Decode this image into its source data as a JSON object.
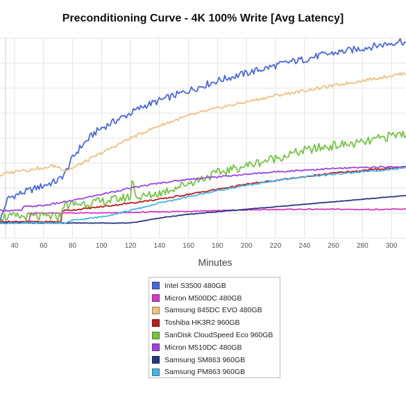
{
  "chart_data": {
    "type": "line",
    "title": "Preconditioning Curve - 4K 100% Write [Avg Latency]",
    "xlabel": "Minutes",
    "ylabel": "",
    "xlim": [
      30,
      310
    ],
    "ylim": [
      0,
      8
    ],
    "x_ticks": [
      40,
      60,
      80,
      100,
      120,
      140,
      160,
      180,
      200,
      220,
      240,
      260,
      280,
      300
    ],
    "grid": true,
    "legend_position": "bottom-center",
    "series": [
      {
        "name": "Intel S3500 480GB",
        "color": "#4a66e0",
        "x": [
          30,
          32,
          34,
          36,
          40,
          45,
          50,
          55,
          60,
          65,
          70,
          75,
          80,
          85,
          90,
          95,
          100,
          110,
          120,
          130,
          140,
          150,
          160,
          170,
          180,
          190,
          200,
          210,
          220,
          230,
          240,
          250,
          260,
          270,
          280,
          290,
          300,
          306,
          310
        ],
        "y": [
          0.7,
          1.0,
          1.4,
          1.6,
          1.7,
          1.8,
          1.9,
          2.0,
          2.1,
          2.2,
          2.3,
          2.6,
          3.2,
          3.6,
          3.9,
          4.2,
          4.4,
          4.7,
          5.0,
          5.3,
          5.5,
          5.7,
          5.9,
          6.1,
          6.3,
          6.45,
          6.6,
          6.75,
          6.9,
          7.05,
          7.15,
          7.3,
          7.4,
          7.5,
          7.6,
          7.7,
          7.8,
          7.9,
          7.8
        ],
        "jitter": 0.14
      },
      {
        "name": "Micron M500DC 480GB",
        "color": "#d33ac4",
        "x": [
          30,
          50,
          51,
          60,
          80,
          100,
          120,
          140,
          160,
          180,
          200,
          220,
          240,
          260,
          280,
          300,
          310
        ],
        "y": [
          0.65,
          0.65,
          1.0,
          1.0,
          1.0,
          1.0,
          1.02,
          1.05,
          1.07,
          1.1,
          1.12,
          1.14,
          1.15,
          1.15,
          1.14,
          1.15,
          1.15
        ],
        "jitter": 0.02
      },
      {
        "name": "Samsung 845DC EVO 480GB",
        "color": "#f0c080",
        "x": [
          30,
          35,
          40,
          45,
          50,
          55,
          60,
          65,
          70,
          75,
          80,
          90,
          100,
          110,
          120,
          130,
          140,
          160,
          180,
          200,
          220,
          240,
          260,
          280,
          300,
          310
        ],
        "y": [
          2.5,
          2.6,
          2.65,
          2.75,
          2.7,
          2.8,
          2.75,
          2.9,
          2.85,
          2.7,
          2.8,
          3.1,
          3.4,
          3.7,
          4.0,
          4.25,
          4.5,
          4.9,
          5.2,
          5.45,
          5.7,
          5.9,
          6.1,
          6.3,
          6.5,
          6.6
        ],
        "jitter": 0.06
      },
      {
        "name": "Toshiba HK3R2 960GB",
        "color": "#b81c1c",
        "x": [
          30,
          72,
          73,
          80,
          100,
          120,
          140,
          160,
          180,
          200,
          220,
          240,
          260,
          280,
          300,
          310
        ],
        "y": [
          0.65,
          0.65,
          1.1,
          1.12,
          1.25,
          1.4,
          1.55,
          1.75,
          1.95,
          2.15,
          2.3,
          2.45,
          2.6,
          2.7,
          2.8,
          2.85
        ],
        "jitter": 0.03
      },
      {
        "name": "SanDisk CloudSpeed Eco 960GB",
        "color": "#74c442",
        "x": [
          30,
          72,
          73,
          80,
          90,
          100,
          110,
          120,
          121,
          125,
          140,
          160,
          180,
          200,
          220,
          240,
          260,
          280,
          300,
          310
        ],
        "y": [
          0.85,
          0.85,
          1.3,
          1.35,
          1.4,
          1.45,
          1.55,
          1.65,
          2.3,
          1.6,
          1.8,
          2.2,
          2.6,
          2.9,
          3.2,
          3.5,
          3.7,
          3.8,
          4.1,
          4.2
        ],
        "jitter": 0.18
      },
      {
        "name": "Micron M510DC 480GB",
        "color": "#9a45e0",
        "x": [
          30,
          45,
          46,
          60,
          80,
          100,
          120,
          140,
          160,
          180,
          200,
          220,
          240,
          260,
          280,
          300,
          310
        ],
        "y": [
          1.1,
          1.1,
          1.25,
          1.3,
          1.5,
          1.75,
          2.0,
          2.2,
          2.35,
          2.45,
          2.55,
          2.65,
          2.72,
          2.78,
          2.82,
          2.85,
          2.85
        ],
        "jitter": 0.03
      },
      {
        "name": "Samsung SM863 960GB",
        "color": "#243a80",
        "x": [
          30,
          120,
          130,
          140,
          160,
          180,
          200,
          220,
          240,
          260,
          280,
          300,
          310
        ],
        "y": [
          0.6,
          0.6,
          0.7,
          0.8,
          0.95,
          1.05,
          1.15,
          1.25,
          1.35,
          1.45,
          1.55,
          1.65,
          1.7
        ],
        "jitter": 0.01
      },
      {
        "name": "Samsung PM863 960GB",
        "color": "#45b4e8",
        "x": [
          30,
          75,
          80,
          100,
          120,
          140,
          160,
          180,
          200,
          220,
          240,
          260,
          280,
          300,
          310
        ],
        "y": [
          0.6,
          0.6,
          0.7,
          0.85,
          1.1,
          1.4,
          1.65,
          1.9,
          2.1,
          2.3,
          2.45,
          2.55,
          2.65,
          2.75,
          2.8
        ],
        "jitter": 0.03
      }
    ]
  }
}
